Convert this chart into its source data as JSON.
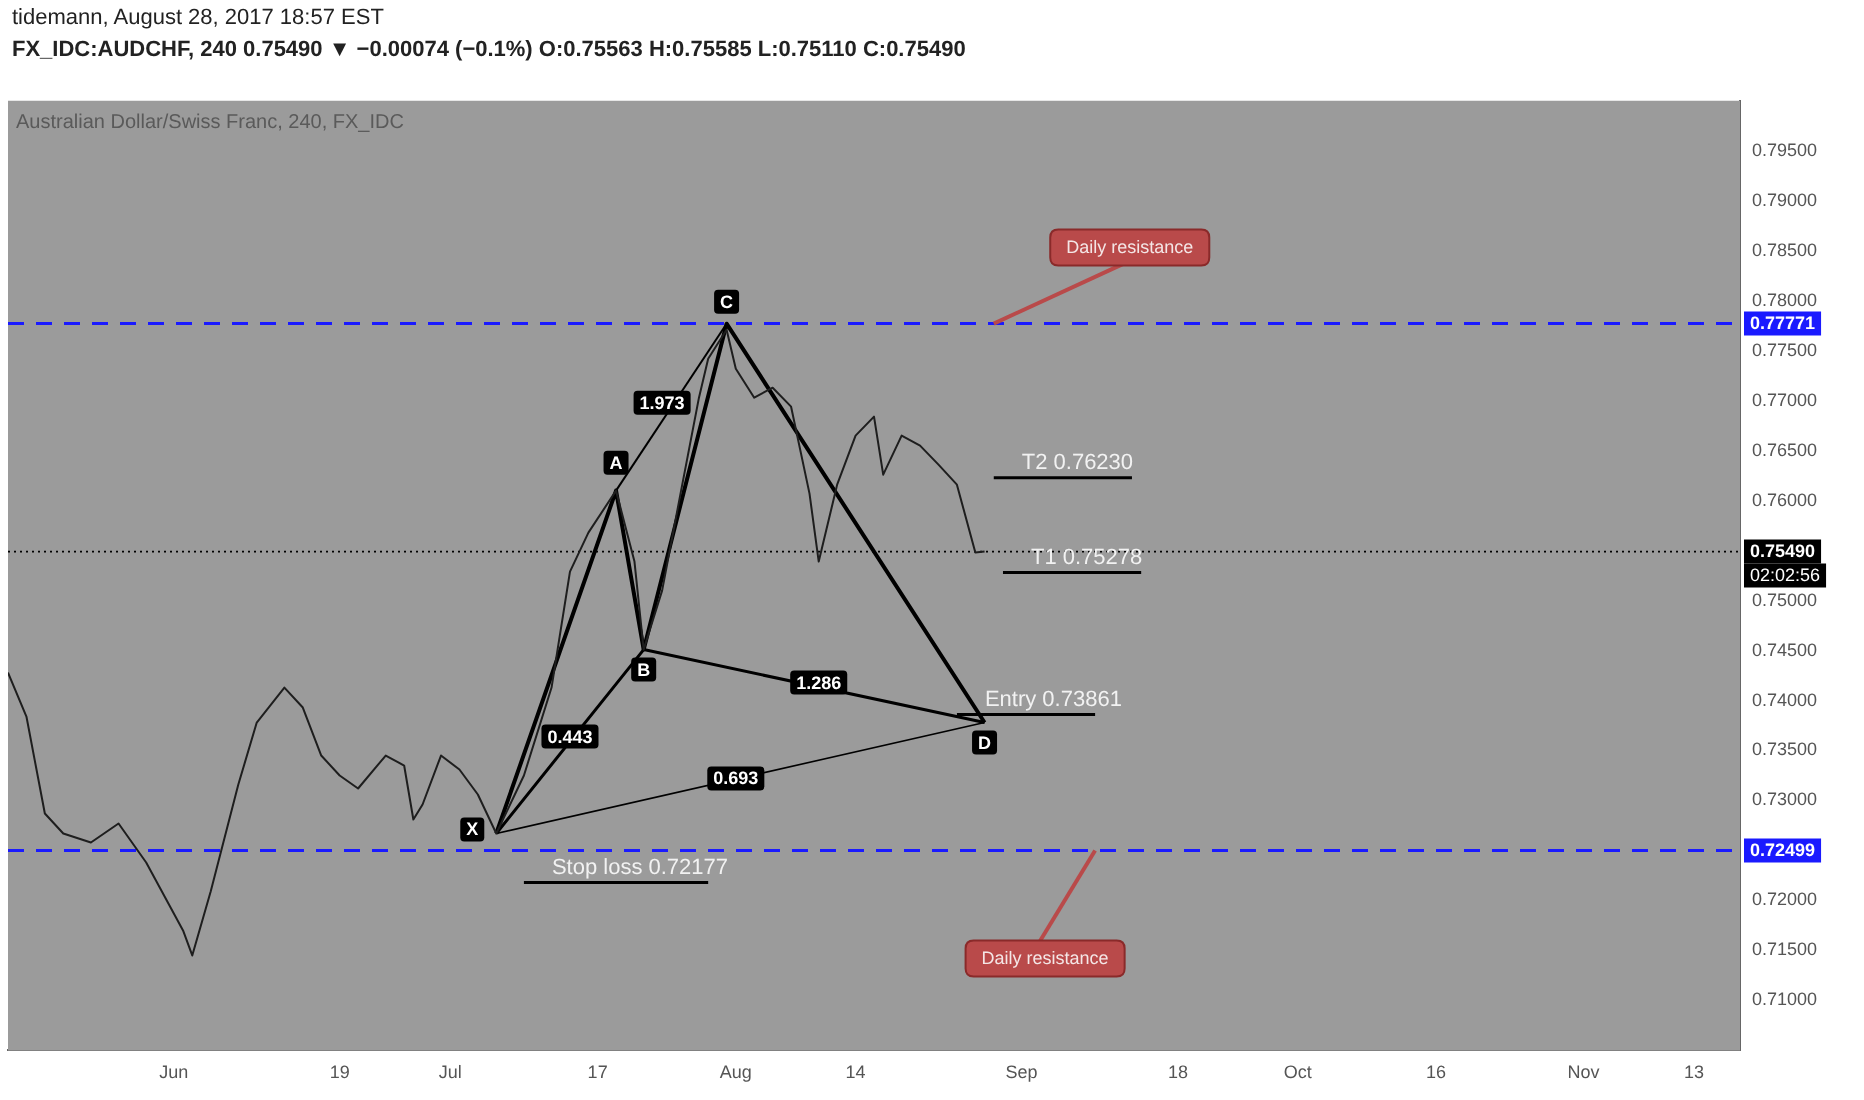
{
  "chart_data": {
    "type": "line",
    "title": "tidemann, August 28, 2017 18:57 EST",
    "subtitle": "FX_IDC:AUDCHF, 240 0.75490 ▼ −0.00074 (−0.1%) O:0.75563 H:0.75585 L:0.75110 C:0.75490",
    "marker": "none",
    "legend": false,
    "grid": false,
    "xlim": [
      "2017-05-14",
      "2017-11-18"
    ],
    "xticks": [
      {
        "value": "2017-06-01",
        "label": "Jun"
      },
      {
        "value": "2017-06-19",
        "label": "19"
      },
      {
        "value": "2017-07-01",
        "label": "Jul"
      },
      {
        "value": "2017-07-17",
        "label": "17"
      },
      {
        "value": "2017-08-01",
        "label": "Aug"
      },
      {
        "value": "2017-08-14",
        "label": "14"
      },
      {
        "value": "2017-09-01",
        "label": "Sep"
      },
      {
        "value": "2017-09-18",
        "label": "18"
      },
      {
        "value": "2017-10-01",
        "label": "Oct"
      },
      {
        "value": "2017-10-16",
        "label": "16"
      },
      {
        "value": "2017-11-01",
        "label": "Nov"
      },
      {
        "value": "2017-11-13",
        "label": "13"
      }
    ],
    "ylim": [
      0.705,
      0.8
    ],
    "yticks": [
      {
        "value": 0.71,
        "label": "0.71000"
      },
      {
        "value": 0.715,
        "label": "0.71500"
      },
      {
        "value": 0.72,
        "label": "0.72000"
      },
      {
        "value": 0.73,
        "label": "0.73000"
      },
      {
        "value": 0.735,
        "label": "0.73500"
      },
      {
        "value": 0.74,
        "label": "0.74000"
      },
      {
        "value": 0.745,
        "label": "0.74500"
      },
      {
        "value": 0.75,
        "label": "0.75000"
      },
      {
        "value": 0.76,
        "label": "0.76000"
      },
      {
        "value": 0.765,
        "label": "0.76500"
      },
      {
        "value": 0.77,
        "label": "0.77000"
      },
      {
        "value": 0.775,
        "label": "0.77500"
      },
      {
        "value": 0.78,
        "label": "0.78000"
      },
      {
        "value": 0.785,
        "label": "0.78500"
      },
      {
        "value": 0.79,
        "label": "0.79000"
      },
      {
        "value": 0.795,
        "label": "0.79500"
      }
    ],
    "series": [
      {
        "type": "line",
        "color": "#1e1e1e",
        "x": [
          "2017-05-14",
          "2017-05-16",
          "2017-05-18",
          "2017-05-20",
          "2017-05-23",
          "2017-05-26",
          "2017-05-29",
          "2017-06-02",
          "2017-06-03",
          "2017-06-05",
          "2017-06-08",
          "2017-06-10",
          "2017-06-13",
          "2017-06-15",
          "2017-06-17",
          "2017-06-19",
          "2017-06-21",
          "2017-06-24",
          "2017-06-26",
          "2017-06-27",
          "2017-06-28",
          "2017-06-30",
          "2017-07-02",
          "2017-07-04",
          "2017-07-06",
          "2017-07-09",
          "2017-07-12",
          "2017-07-14",
          "2017-07-16",
          "2017-07-19",
          "2017-07-21",
          "2017-07-22",
          "2017-07-24",
          "2017-07-26",
          "2017-07-28",
          "2017-07-29",
          "2017-07-31",
          "2017-08-01",
          "2017-08-03",
          "2017-08-05",
          "2017-08-07",
          "2017-08-09",
          "2017-08-10",
          "2017-08-12",
          "2017-08-14",
          "2017-08-16",
          "2017-08-17",
          "2017-08-19",
          "2017-08-21",
          "2017-08-23",
          "2017-08-25",
          "2017-08-27",
          "2017-08-28"
        ],
        "values": [
          0.7428,
          0.7384,
          0.7287,
          0.7267,
          0.7258,
          0.7277,
          0.7238,
          0.717,
          0.7145,
          0.7209,
          0.7316,
          0.7378,
          0.7413,
          0.7393,
          0.7345,
          0.7325,
          0.7312,
          0.7345,
          0.7335,
          0.7281,
          0.7296,
          0.7345,
          0.7331,
          0.7306,
          0.7267,
          0.7325,
          0.7413,
          0.7529,
          0.7568,
          0.761,
          0.7539,
          0.7451,
          0.751,
          0.7607,
          0.7703,
          0.7742,
          0.7771,
          0.7732,
          0.7703,
          0.7713,
          0.7694,
          0.7607,
          0.7539,
          0.7616,
          0.7665,
          0.7684,
          0.7626,
          0.7665,
          0.7655,
          0.7636,
          0.7616,
          0.7548,
          0.7549
        ]
      },
      {
        "type": "line",
        "color": "#000000",
        "x": [
          "2017-07-06",
          "2017-07-19",
          "2017-07-22",
          "2017-07-31",
          "2017-08-28"
        ],
        "values": [
          0.7267,
          0.761,
          0.7451,
          0.7777,
          0.7378
        ]
      },
      {
        "type": "line",
        "color": "#000000",
        "x": [
          "2017-07-06",
          "2017-07-22",
          "2017-08-28"
        ],
        "values": [
          0.7267,
          0.7451,
          0.7378
        ]
      },
      {
        "type": "line",
        "color": "#000000",
        "x": [
          "2017-07-19",
          "2017-07-31"
        ],
        "values": [
          0.761,
          0.7777
        ]
      },
      {
        "type": "line",
        "color": "#000000",
        "x": [
          "2017-07-06",
          "2017-08-28"
        ],
        "values": [
          0.7267,
          0.7378
        ]
      },
      {
        "type": "line",
        "name": "T2 0.76230",
        "color": "#000000",
        "x": [
          "2017-08-29",
          "2017-09-13"
        ],
        "values": [
          0.7623,
          0.7623
        ]
      },
      {
        "type": "line",
        "name": "T1 0.75278",
        "color": "#000000",
        "x": [
          "2017-08-30",
          "2017-09-14"
        ],
        "values": [
          0.7528,
          0.7528
        ]
      },
      {
        "type": "line",
        "name": "Entry 0.73861",
        "color": "#000000",
        "x": [
          "2017-08-25",
          "2017-09-09"
        ],
        "values": [
          0.7386,
          0.7386
        ]
      },
      {
        "type": "line",
        "name": "Stop loss 0.72177",
        "color": "#000000",
        "x": [
          "2017-07-09",
          "2017-07-29"
        ],
        "values": [
          0.7218,
          0.7218
        ]
      }
    ],
    "ref_lines": [
      {
        "axis": "y",
        "value": 0.77771,
        "label": "0.77771",
        "color": "#1a1aff",
        "line_style": "dashed"
      },
      {
        "axis": "y",
        "value": 0.72499,
        "label": "0.72499",
        "color": "#1a1aff",
        "line_style": "dashed"
      },
      {
        "axis": "y",
        "value": 0.7549,
        "label": "0.75490",
        "color": "#000000",
        "line_style": "dotted"
      }
    ],
    "annotations": [
      "Australian Dollar/Swiss Franc, 240, FX_IDC",
      "02:02:56",
      {
        "text": "Daily resistance",
        "x": "2017-08-29",
        "y": 0.77771
      },
      {
        "text": "Daily resistance",
        "x": "2017-09-09",
        "y": 0.72499
      },
      {
        "text": "X",
        "x": "2017-07-06",
        "y": 0.7267
      },
      {
        "text": "A",
        "x": "2017-07-19",
        "y": 0.761
      },
      {
        "text": "B",
        "x": "2017-07-22",
        "y": 0.7451
      },
      {
        "text": "C",
        "x": "2017-07-31",
        "y": 0.7777
      },
      {
        "text": "D",
        "x": "2017-08-28",
        "y": 0.7378
      },
      {
        "text": "0.443",
        "x": "2017-07-14",
        "y": 0.7364
      },
      {
        "text": "1.973",
        "x": "2017-07-24",
        "y": 0.7698
      },
      {
        "text": "1.286",
        "x": "2017-08-10",
        "y": 0.7418
      },
      {
        "text": "0.693",
        "x": "2017-08-01",
        "y": 0.7322
      }
    ]
  }
}
